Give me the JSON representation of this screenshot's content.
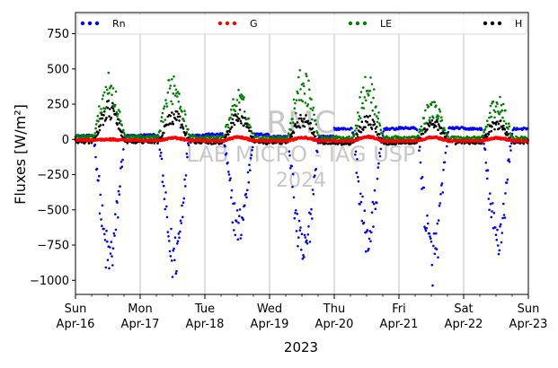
{
  "chart_data": {
    "type": "scatter",
    "title": "",
    "xlabel": "2023",
    "ylabel": "Fluxes [W/m²]",
    "ylim": [
      -1100,
      900
    ],
    "xlim": [
      "2023-04-16T00:00",
      "2023-04-23T00:00"
    ],
    "yticks": [
      750,
      500,
      250,
      0,
      -250,
      -500,
      -750,
      -1000
    ],
    "ytick_labels": [
      "750",
      "500",
      "250",
      "0",
      "−250",
      "−500",
      "−750",
      "−1000"
    ],
    "xtick_labels": [
      [
        "Sun",
        "Apr-16"
      ],
      [
        "Mon",
        "Apr-17"
      ],
      [
        "Tue",
        "Apr-18"
      ],
      [
        "Wed",
        "Apr-19"
      ],
      [
        "Thu",
        "Apr-20"
      ],
      [
        "Fri",
        "Apr-21"
      ],
      [
        "Sat",
        "Apr-22"
      ],
      [
        "Sun",
        "Apr-23"
      ]
    ],
    "grid": "x-major",
    "legend_position": "top",
    "watermark": [
      "RMC",
      "LAB MICRO - IAG USP",
      "2024"
    ],
    "series": [
      {
        "name": "Rn",
        "color": "#0000ff",
        "daily_min": [
          -850,
          -840,
          -620,
          -820,
          -690,
          -840,
          -700
        ],
        "night_level": [
          25,
          30,
          35,
          20,
          75,
          80,
          75
        ],
        "peak_hour": 14.5
      },
      {
        "name": "G",
        "color": "#ff0000",
        "daily_min": [
          0,
          10,
          15,
          12,
          18,
          15,
          10
        ],
        "night_level": [
          -5,
          -8,
          -10,
          -10,
          -12,
          -10,
          -10
        ],
        "peak_hour": 14
      },
      {
        "name": "LE",
        "color": "#008000",
        "daily_min": [
          360,
          380,
          270,
          400,
          350,
          220,
          240
        ],
        "night_level": [
          20,
          15,
          10,
          12,
          10,
          10,
          10
        ],
        "peak_hour": 13
      },
      {
        "name": "H",
        "color": "#000000",
        "daily_min": [
          210,
          160,
          160,
          140,
          130,
          120,
          110
        ],
        "night_level": [
          -15,
          -15,
          -20,
          -20,
          -25,
          -20,
          -20
        ],
        "peak_hour": 12
      }
    ]
  }
}
